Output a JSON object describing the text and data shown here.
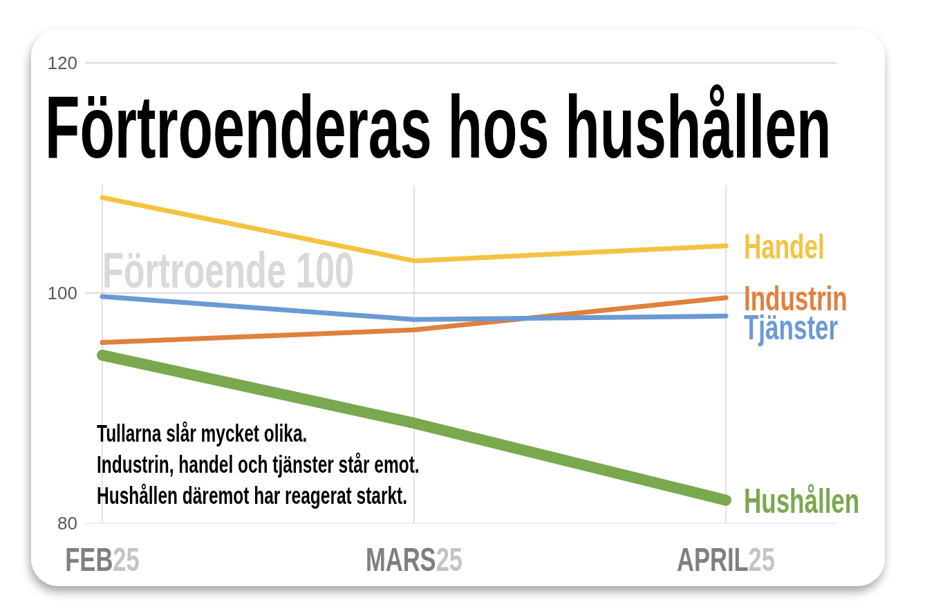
{
  "chart_data": {
    "type": "line",
    "title": "Förtroenderas hos hushållen",
    "categories": [
      "FEB25",
      "MARS25",
      "APRIL25"
    ],
    "series": [
      {
        "name": "Handel",
        "color": "#f5c342",
        "values": [
          108.3,
          102.8,
          104.1
        ]
      },
      {
        "name": "Industrin",
        "color": "#e0803e",
        "values": [
          95.7,
          96.8,
          99.6
        ]
      },
      {
        "name": "Tjänster",
        "color": "#6a9ad4",
        "values": [
          99.7,
          97.7,
          98.0
        ]
      },
      {
        "name": "Hushållen",
        "color": "#7aa84f",
        "values": [
          94.6,
          88.7,
          82.0
        ]
      }
    ],
    "ylim": [
      80,
      120
    ],
    "yticks": [
      80,
      100,
      120
    ],
    "grid": true,
    "ref_lines": [
      {
        "axis": "y",
        "value": 100,
        "label": "Förtroende 100",
        "color": "#d9d9d9"
      }
    ],
    "annotations": [
      "Tullarna slår mycket olika.",
      "Industrin, handel och tjänster står emot.",
      "Hushållen däremot har reagerat starkt."
    ]
  }
}
